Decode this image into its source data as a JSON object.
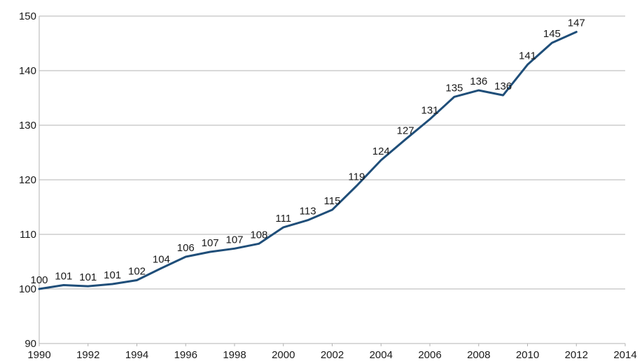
{
  "chart_data": {
    "type": "line",
    "title": "",
    "xlabel": "",
    "ylabel": "",
    "xlim": [
      1990,
      2014
    ],
    "ylim": [
      90,
      150
    ],
    "x_ticks": [
      1990,
      1992,
      1994,
      1996,
      1998,
      2000,
      2002,
      2004,
      2006,
      2008,
      2010,
      2012,
      2014
    ],
    "y_ticks": [
      90,
      100,
      110,
      120,
      130,
      140,
      150
    ],
    "grid": "horizontal",
    "line_color": "#1f4e79",
    "series": [
      {
        "x": [
          1990,
          1991,
          1992,
          1993,
          1994,
          1995,
          1996,
          1997,
          1998,
          1999,
          2000,
          2001,
          2002,
          2003,
          2004,
          2005,
          2006,
          2007,
          2008,
          2009,
          2010,
          2011,
          2012
        ],
        "values": [
          100,
          100.7,
          100.5,
          100.9,
          101.6,
          103.8,
          105.9,
          106.8,
          107.4,
          108.3,
          111.3,
          112.6,
          114.5,
          118.9,
          123.6,
          127.4,
          131.1,
          135.2,
          136.4,
          135.5,
          141.1,
          145.1,
          147.1
        ],
        "labels": [
          "100",
          "101",
          "101",
          "101",
          "102",
          "104",
          "106",
          "107",
          "107",
          "108",
          "111",
          "113",
          "115",
          "119",
          "124",
          "127",
          "131",
          "135",
          "136",
          "136",
          "141",
          "145",
          "147"
        ]
      }
    ]
  }
}
